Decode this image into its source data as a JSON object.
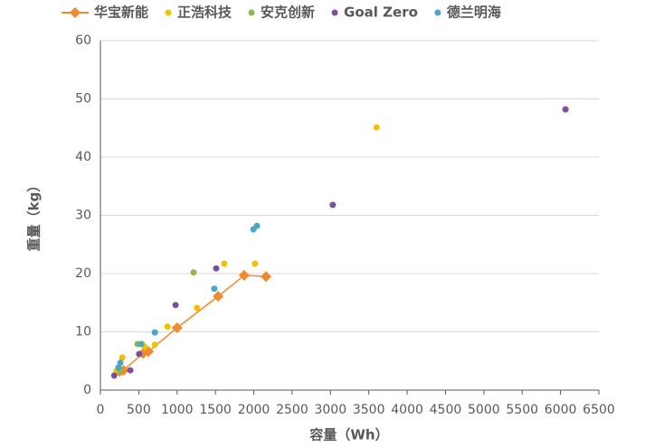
{
  "chart_data": {
    "type": "scatter",
    "x_label": "容量（Wh）",
    "y_label": "重量（kg）",
    "xlim": [
      0,
      6500
    ],
    "xticks": [
      0,
      500,
      1000,
      1500,
      2000,
      2500,
      3000,
      3500,
      4000,
      4500,
      5000,
      5500,
      6000,
      6500
    ],
    "ylim": [
      0,
      60
    ],
    "yticks": [
      0,
      10,
      20,
      30,
      40,
      50,
      60
    ],
    "grid": true,
    "series": [
      {
        "name": "华宝新能",
        "color": "#f08a2e",
        "line": true,
        "marker": "diamond",
        "x": [
          250,
          300,
          555,
          625,
          1000,
          1535,
          1875,
          2160
        ],
        "values": [
          3.2,
          3.4,
          6.3,
          6.6,
          10.7,
          16.1,
          19.7,
          19.5
        ]
      },
      {
        "name": "正浩科技",
        "color": "#f5c000",
        "line": false,
        "marker": "circle",
        "x": [
          210,
          285,
          545,
          580,
          710,
          875,
          1260,
          1615,
          2015,
          3600
        ],
        "values": [
          3.3,
          5.6,
          7.9,
          7.4,
          7.8,
          10.9,
          14.1,
          21.7,
          21.7,
          45.1
        ]
      },
      {
        "name": "安克创新",
        "color": "#8db650",
        "line": false,
        "marker": "circle",
        "x": [
          250,
          485,
          1215
        ],
        "values": [
          3.4,
          7.9,
          20.2
        ]
      },
      {
        "name": "Goal Zero",
        "color": "#7d4f9f",
        "line": false,
        "marker": "circle",
        "x": [
          180,
          390,
          505,
          980,
          1510,
          3030,
          6065
        ],
        "values": [
          2.5,
          3.4,
          6.2,
          14.6,
          20.9,
          31.8,
          48.2
        ]
      },
      {
        "name": "德兰明海",
        "color": "#4ba7c7",
        "line": false,
        "marker": "circle",
        "x": [
          235,
          260,
          530,
          710,
          1485,
          1995,
          2040
        ],
        "values": [
          3.9,
          4.7,
          7.9,
          9.9,
          17.4,
          27.6,
          28.2
        ]
      }
    ]
  }
}
